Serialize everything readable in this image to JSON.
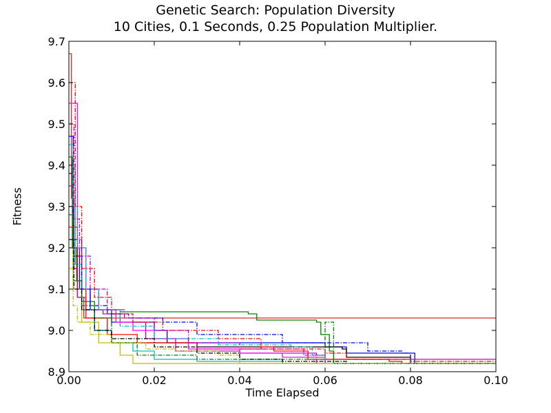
{
  "chart_data": {
    "type": "line",
    "title": "Genetic Search: Population Diversity",
    "subtitle": "10 Cities, 0.1 Seconds, 0.25 Population Multiplier.",
    "xlabel": "Time Elapsed",
    "ylabel": "Fitness",
    "xlim": [
      0.0,
      0.1
    ],
    "ylim": [
      8.9,
      9.7
    ],
    "xticks": [
      "0.00",
      "0.02",
      "0.04",
      "0.06",
      "0.08",
      "0.10"
    ],
    "yticks": [
      "8.9",
      "9.0",
      "9.1",
      "9.2",
      "9.3",
      "9.4",
      "9.5",
      "9.6",
      "9.7"
    ],
    "grid": false,
    "legend": "none",
    "series": [
      {
        "color": "#d62728",
        "style": "solid",
        "points": [
          [
            0.0,
            9.67
          ],
          [
            0.0006,
            9.32
          ],
          [
            0.0012,
            9.15
          ],
          [
            0.002,
            9.08
          ],
          [
            0.0035,
            9.03
          ],
          [
            0.1,
            9.03
          ]
        ]
      },
      {
        "color": "#008000",
        "style": "solid",
        "points": [
          [
            0.0,
            9.42
          ],
          [
            0.0008,
            9.2
          ],
          [
            0.0018,
            9.12
          ],
          [
            0.003,
            9.07
          ],
          [
            0.006,
            9.05
          ],
          [
            0.012,
            9.045
          ],
          [
            0.042,
            9.04
          ],
          [
            0.044,
            9.025
          ],
          [
            0.058,
            9.02
          ],
          [
            0.059,
            8.99
          ],
          [
            0.061,
            8.95
          ],
          [
            0.062,
            8.92
          ],
          [
            0.1,
            8.92
          ]
        ]
      },
      {
        "color": "#0000ff",
        "style": "solid",
        "points": [
          [
            0.0,
            9.47
          ],
          [
            0.001,
            9.2
          ],
          [
            0.0025,
            9.1
          ],
          [
            0.005,
            9.05
          ],
          [
            0.01,
            9.02
          ],
          [
            0.02,
            9.0
          ],
          [
            0.023,
            8.97
          ],
          [
            0.06,
            8.96
          ],
          [
            0.065,
            8.945
          ],
          [
            0.081,
            8.945
          ],
          [
            0.081,
            8.92
          ]
        ]
      },
      {
        "color": "#000000",
        "style": "solid",
        "points": [
          [
            0.0,
            9.3
          ],
          [
            0.001,
            9.18
          ],
          [
            0.003,
            9.05
          ],
          [
            0.006,
            9.0
          ],
          [
            0.01,
            8.97
          ],
          [
            0.03,
            8.96
          ],
          [
            0.064,
            8.955
          ],
          [
            0.065,
            8.935
          ],
          [
            0.08,
            8.93
          ],
          [
            0.08,
            8.92
          ],
          [
            0.1,
            8.92
          ]
        ]
      },
      {
        "color": "#bf00bf",
        "style": "solid",
        "points": [
          [
            0.0,
            9.35
          ],
          [
            0.001,
            9.15
          ],
          [
            0.002,
            9.08
          ],
          [
            0.004,
            9.05
          ],
          [
            0.008,
            9.04
          ],
          [
            0.012,
            9.02
          ],
          [
            0.018,
            8.98
          ],
          [
            0.025,
            8.95
          ],
          [
            0.04,
            8.945
          ],
          [
            0.058,
            8.94
          ],
          [
            0.06,
            8.93
          ],
          [
            0.1,
            8.93
          ]
        ]
      },
      {
        "color": "#00bfbf",
        "style": "solid",
        "points": [
          [
            0.0,
            9.4
          ],
          [
            0.0015,
            9.16
          ],
          [
            0.003,
            9.05
          ],
          [
            0.006,
            9.0
          ],
          [
            0.01,
            8.97
          ],
          [
            0.015,
            8.95
          ],
          [
            0.02,
            8.93
          ],
          [
            0.03,
            8.925
          ],
          [
            0.05,
            8.92
          ],
          [
            0.1,
            8.92
          ]
        ]
      },
      {
        "color": "#ff0000",
        "style": "solid",
        "points": [
          [
            0.0,
            9.25
          ],
          [
            0.002,
            9.1
          ],
          [
            0.004,
            9.03
          ],
          [
            0.009,
            8.99
          ],
          [
            0.016,
            8.97
          ],
          [
            0.03,
            8.955
          ],
          [
            0.045,
            8.96
          ],
          [
            0.048,
            8.95
          ],
          [
            0.055,
            8.95
          ],
          [
            0.056,
            8.93
          ],
          [
            0.075,
            8.925
          ],
          [
            0.078,
            8.92
          ],
          [
            0.1,
            8.92
          ]
        ]
      },
      {
        "color": "#bfbf00",
        "style": "solid",
        "points": [
          [
            0.0,
            9.2
          ],
          [
            0.001,
            9.1
          ],
          [
            0.003,
            9.02
          ],
          [
            0.007,
            8.97
          ],
          [
            0.012,
            8.94
          ],
          [
            0.015,
            8.92
          ],
          [
            0.1,
            8.92
          ]
        ]
      },
      {
        "color": "#ff00ff",
        "style": "solid",
        "points": [
          [
            0.0,
            9.55
          ],
          [
            0.002,
            9.2
          ],
          [
            0.004,
            9.1
          ],
          [
            0.007,
            9.05
          ],
          [
            0.011,
            9.02
          ],
          [
            0.015,
            9.0
          ],
          [
            0.02,
            8.98
          ],
          [
            0.028,
            8.955
          ],
          [
            0.04,
            8.945
          ],
          [
            0.05,
            8.935
          ],
          [
            0.06,
            8.92
          ]
        ]
      },
      {
        "color": "#0000ff",
        "style": "dashdot",
        "points": [
          [
            0.0,
            9.38
          ],
          [
            0.001,
            9.22
          ],
          [
            0.003,
            9.1
          ],
          [
            0.005,
            9.06
          ],
          [
            0.009,
            9.04
          ],
          [
            0.014,
            9.03
          ],
          [
            0.022,
            9.02
          ],
          [
            0.03,
            8.99
          ],
          [
            0.05,
            8.97
          ],
          [
            0.07,
            8.95
          ],
          [
            0.078,
            8.945
          ],
          [
            0.08,
            8.92
          ]
        ]
      },
      {
        "color": "#008000",
        "style": "dashdot",
        "points": [
          [
            0.0,
            9.28
          ],
          [
            0.001,
            9.12
          ],
          [
            0.003,
            9.06
          ],
          [
            0.006,
            9.03
          ],
          [
            0.01,
            8.97
          ],
          [
            0.016,
            8.94
          ],
          [
            0.03,
            8.93
          ],
          [
            0.06,
            9.02
          ],
          [
            0.061,
            9.02
          ],
          [
            0.062,
            8.92
          ],
          [
            0.1,
            8.92
          ]
        ]
      },
      {
        "color": "#ff0000",
        "style": "dashdot",
        "points": [
          [
            0.0,
            9.6
          ],
          [
            0.0015,
            9.3
          ],
          [
            0.003,
            9.15
          ],
          [
            0.006,
            9.08
          ],
          [
            0.01,
            9.04
          ],
          [
            0.015,
            9.02
          ],
          [
            0.022,
            9.0
          ],
          [
            0.035,
            8.98
          ],
          [
            0.045,
            8.955
          ],
          [
            0.06,
            8.945
          ],
          [
            0.065,
            8.93
          ],
          [
            0.08,
            8.925
          ],
          [
            0.1,
            8.925
          ]
        ]
      },
      {
        "color": "#00bfbf",
        "style": "dashdot",
        "points": [
          [
            0.0,
            9.45
          ],
          [
            0.001,
            9.3
          ],
          [
            0.002,
            9.2
          ],
          [
            0.004,
            9.1
          ],
          [
            0.007,
            9.05
          ],
          [
            0.012,
            9.01
          ],
          [
            0.02,
            8.98
          ],
          [
            0.035,
            8.965
          ],
          [
            0.052,
            8.96
          ],
          [
            0.057,
            8.94
          ],
          [
            0.06,
            8.93
          ]
        ]
      },
      {
        "color": "#bf00bf",
        "style": "dashdot",
        "points": [
          [
            0.0,
            9.5
          ],
          [
            0.0012,
            9.27
          ],
          [
            0.0025,
            9.18
          ],
          [
            0.005,
            9.1
          ],
          [
            0.009,
            9.05
          ],
          [
            0.013,
            9.03
          ],
          [
            0.02,
            9.0
          ],
          [
            0.028,
            8.97
          ],
          [
            0.04,
            8.955
          ],
          [
            0.055,
            8.94
          ],
          [
            0.058,
            8.92
          ]
        ]
      },
      {
        "color": "#bfbf00",
        "style": "dashdot",
        "points": [
          [
            0.0,
            9.15
          ],
          [
            0.001,
            9.06
          ],
          [
            0.002,
            9.02
          ],
          [
            0.005,
            8.99
          ],
          [
            0.01,
            8.97
          ],
          [
            0.018,
            8.955
          ],
          [
            0.025,
            8.95
          ],
          [
            0.035,
            8.94
          ],
          [
            0.04,
            8.92
          ],
          [
            0.1,
            8.92
          ]
        ]
      },
      {
        "color": "#000000",
        "style": "dashdot",
        "points": [
          [
            0.0,
            9.22
          ],
          [
            0.0012,
            9.1
          ],
          [
            0.003,
            9.05
          ],
          [
            0.006,
            9.0
          ],
          [
            0.01,
            8.98
          ],
          [
            0.02,
            8.96
          ],
          [
            0.03,
            8.945
          ],
          [
            0.04,
            8.93
          ],
          [
            0.05,
            8.925
          ],
          [
            0.065,
            8.92
          ]
        ]
      }
    ]
  }
}
